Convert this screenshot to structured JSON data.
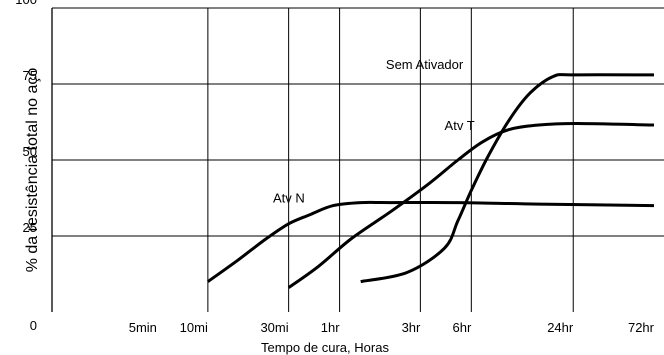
{
  "chart_data": {
    "type": "line",
    "title": "",
    "xlabel": "Tempo de cura, Horas",
    "ylabel": "% da resistência total no aço",
    "x_scale": "log",
    "x_tick_labels": [
      "5min",
      "10mi",
      "30mi",
      "1hr",
      "3hr",
      "6hr",
      "24hr",
      "72hr"
    ],
    "x_tick_values_min": [
      5,
      10,
      30,
      60,
      180,
      360,
      1440,
      4320
    ],
    "xlim_min": [
      1.2,
      4320
    ],
    "y_tick_labels": [
      "0",
      "25",
      "50",
      "75",
      "100"
    ],
    "y_tick_values": [
      0,
      25,
      50,
      75,
      100
    ],
    "ylim": [
      0,
      100
    ],
    "grid": true,
    "legend": "none (series labelled directly on the curves)",
    "series": [
      {
        "name": "Atv N",
        "x_min": [
          10,
          15,
          22,
          30,
          40,
          55,
          80,
          120,
          300,
          900,
          4320
        ],
        "y": [
          10,
          17,
          24,
          29,
          32,
          35,
          36,
          36,
          36,
          35.5,
          35
        ]
      },
      {
        "name": "Atv T",
        "x_min": [
          30,
          45,
          70,
          120,
          200,
          300,
          420,
          600,
          900,
          1500,
          4320
        ],
        "y": [
          8,
          15,
          24,
          33,
          42,
          50,
          56,
          60,
          61.5,
          62,
          61.5
        ]
      },
      {
        "name": "Sem Ativador",
        "x_min": [
          80,
          150,
          250,
          300,
          360,
          450,
          600,
          800,
          1100,
          1440,
          4320
        ],
        "y": [
          10,
          13,
          21,
          30,
          40,
          51,
          63,
          72,
          77.5,
          78,
          78
        ]
      }
    ]
  }
}
